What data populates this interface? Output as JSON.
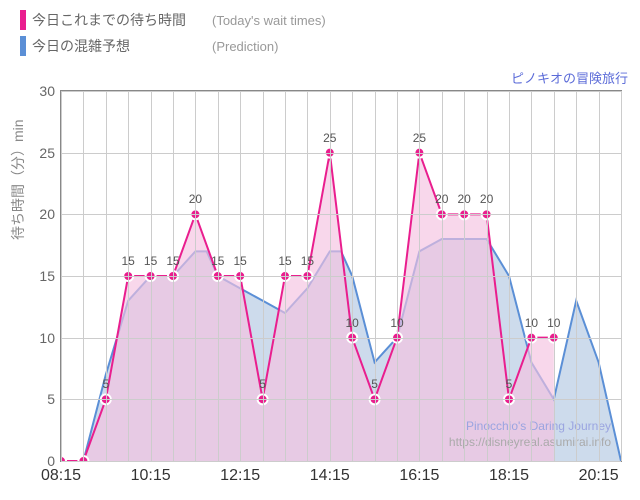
{
  "legend": [
    {
      "label": "今日これまでの待ち時間",
      "sub": "(Today's wait times)",
      "color": "#e91e8e"
    },
    {
      "label": "今日の混雑予想",
      "sub": "(Prediction)",
      "color": "#5b8fd6"
    }
  ],
  "attraction_title_ja": "ピノキオの冒険旅行",
  "attraction_title_en": "Pinocchio's Daring Journey",
  "source_url": "https://disneyreal.asumirai.info",
  "y_axis_label": "待ち時間（分）min",
  "chart": {
    "xlim": [
      495,
      1245
    ],
    "ylim": [
      0,
      30
    ],
    "ytick_step": 5,
    "xtick_step": 120,
    "xtick_start": 495,
    "xgrid_minor": 30,
    "grid_color": "#cccccc",
    "border_color": "#888888",
    "background": "#ffffff",
    "prediction": {
      "fill": "#b8cce4",
      "fill_opacity": 0.7,
      "stroke": "#5b8fd6",
      "stroke_width": 2,
      "points": [
        [
          495,
          0
        ],
        [
          525,
          0
        ],
        [
          555,
          7
        ],
        [
          585,
          13
        ],
        [
          600,
          14
        ],
        [
          615,
          15
        ],
        [
          645,
          15
        ],
        [
          675,
          17
        ],
        [
          690,
          17
        ],
        [
          705,
          15
        ],
        [
          735,
          14
        ],
        [
          765,
          13
        ],
        [
          795,
          12
        ],
        [
          825,
          14
        ],
        [
          855,
          17
        ],
        [
          870,
          17
        ],
        [
          885,
          15
        ],
        [
          915,
          8
        ],
        [
          945,
          10
        ],
        [
          975,
          17
        ],
        [
          1005,
          18
        ],
        [
          1035,
          18
        ],
        [
          1065,
          18
        ],
        [
          1095,
          15
        ],
        [
          1125,
          8
        ],
        [
          1155,
          5
        ],
        [
          1185,
          13
        ],
        [
          1215,
          8
        ],
        [
          1245,
          0
        ]
      ]
    },
    "actual": {
      "fill": "#f4c2e0",
      "fill_opacity": 0.65,
      "stroke": "#e91e8e",
      "stroke_width": 2,
      "marker_fill": "#e91e8e",
      "marker_stroke": "#ffffff",
      "marker_radius": 5,
      "points": [
        [
          495,
          0
        ],
        [
          525,
          0
        ],
        [
          555,
          5
        ],
        [
          585,
          15
        ],
        [
          615,
          15
        ],
        [
          645,
          15
        ],
        [
          675,
          20
        ],
        [
          705,
          15
        ],
        [
          735,
          15
        ],
        [
          765,
          5
        ],
        [
          795,
          15
        ],
        [
          825,
          15
        ],
        [
          855,
          25
        ],
        [
          885,
          10
        ],
        [
          915,
          5
        ],
        [
          945,
          10
        ],
        [
          975,
          25
        ],
        [
          1005,
          20
        ],
        [
          1035,
          20
        ],
        [
          1065,
          20
        ],
        [
          1095,
          5
        ],
        [
          1125,
          10
        ],
        [
          1155,
          10
        ]
      ],
      "labels": [
        null,
        null,
        5,
        15,
        15,
        15,
        20,
        15,
        15,
        5,
        15,
        15,
        25,
        10,
        5,
        10,
        25,
        20,
        20,
        20,
        5,
        10,
        10
      ]
    }
  }
}
